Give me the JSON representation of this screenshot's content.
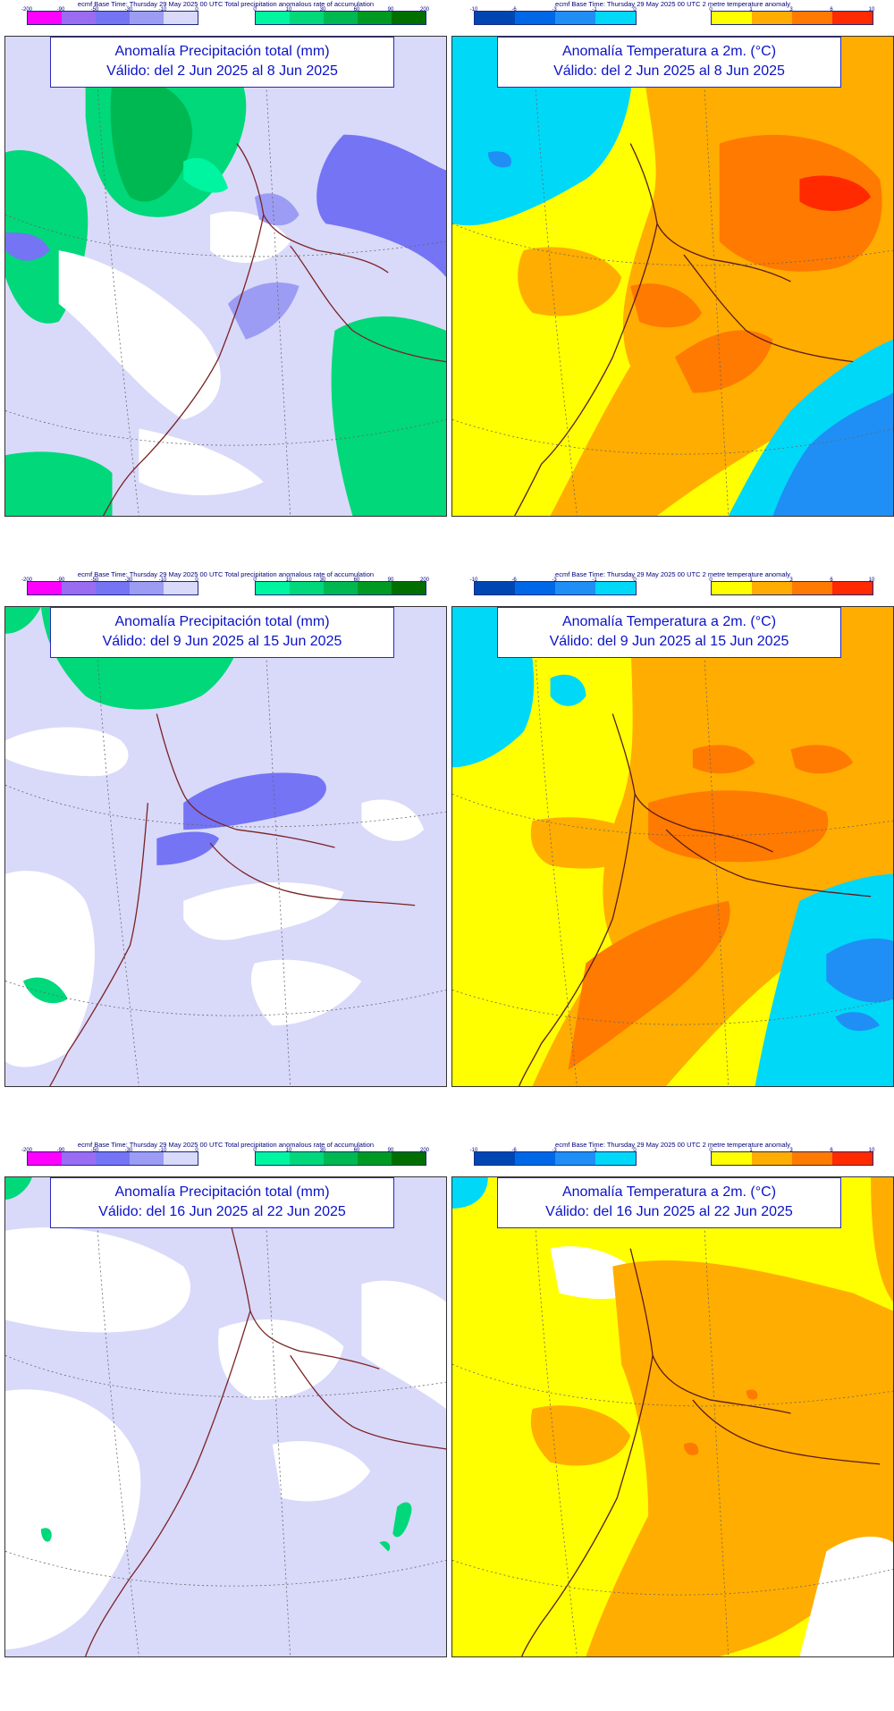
{
  "base_text": {
    "precip": "ecmf  Base Time: Thursday 29 May 2025 00 UTC Total precipitation anomalous rate of accumulation",
    "temp": "ecmf  Base Time: Thursday 29 May 2025 00 UTC 2 metre temperature anomaly"
  },
  "legends": {
    "precip_negative": {
      "ticks": [
        "-200",
        "-90",
        "-50",
        "-30",
        "-10",
        "0"
      ],
      "colors": [
        "#ff00ff",
        "#9a6cf2",
        "#7474f5",
        "#9c9cf4",
        "#d9d9fa"
      ]
    },
    "precip_positive": {
      "ticks": [
        "0",
        "10",
        "30",
        "60",
        "90",
        "200"
      ],
      "colors": [
        "#00f5a0",
        "#00d87a",
        "#00b851",
        "#009a22",
        "#006f00"
      ]
    },
    "temp_negative": {
      "ticks": [
        "-10",
        "-6",
        "-3",
        "-1",
        "0"
      ],
      "colors": [
        "#0046b3",
        "#0067e6",
        "#1f8ff5",
        "#00d8f8"
      ]
    },
    "temp_positive": {
      "ticks": [
        "0",
        "1",
        "3",
        "6",
        "10"
      ],
      "colors": [
        "#ffff00",
        "#ffad00",
        "#ff7a00",
        "#ff2a00"
      ]
    }
  },
  "panels": [
    {
      "id": "p1",
      "kind": "precip",
      "title": "Anomalía Precipitación total (mm)",
      "valid": "Válido: del 2 Jun 2025 al 8 Jun 2025"
    },
    {
      "id": "t1",
      "kind": "temp",
      "title": "Anomalía Temperatura a 2m. (°C)",
      "valid": "Válido: del 2 Jun 2025 al 8 Jun 2025"
    },
    {
      "id": "p2",
      "kind": "precip",
      "title": "Anomalía Precipitación total (mm)",
      "valid": "Válido: del 9 Jun 2025 al 15 Jun 2025"
    },
    {
      "id": "t2",
      "kind": "temp",
      "title": "Anomalía Temperatura a 2m. (°C)",
      "valid": "Válido: del 9 Jun 2025 al 15 Jun 2025"
    },
    {
      "id": "p3",
      "kind": "precip",
      "title": "Anomalía Precipitación total (mm)",
      "valid": "Válido: del 16 Jun 2025 al 22 Jun 2025"
    },
    {
      "id": "t3",
      "kind": "temp",
      "title": "Anomalía Temperatura a 2m. (°C)",
      "valid": "Válido: del 16 Jun 2025 al 22 Jun 2025"
    }
  ]
}
